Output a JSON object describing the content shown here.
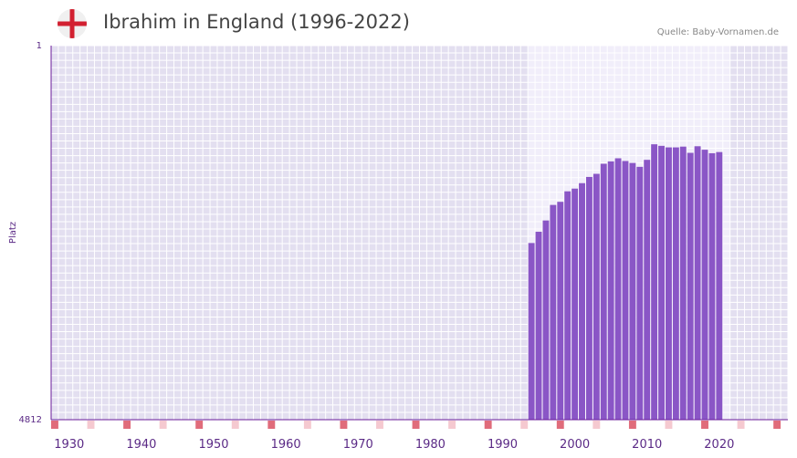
{
  "header": {
    "title": "Ibrahim in England (1996-2022)",
    "source": "Quelle: Baby-Vornamen.de",
    "flag_icon": "england-flag-icon"
  },
  "colors": {
    "bar": "#8a56c6",
    "plot_bg": "#e3dff0",
    "highlight_bg": "#f1eefa",
    "grid": "#ffffff",
    "axis": "#6a1b9a",
    "tick_text": "#5b2a86",
    "marker_major": "#e06c7b",
    "marker_minor": "#f5c9d0"
  },
  "chart_data": {
    "type": "bar",
    "title": "Ibrahim in England (1996-2022)",
    "xlabel": "",
    "ylabel": "Platz",
    "y_top_label": "1",
    "y_bottom_label": "4812",
    "ylim": [
      4812,
      1
    ],
    "xlim": [
      1928,
      2029
    ],
    "highlight_range": [
      1994,
      2021
    ],
    "x_ticks": [
      1930,
      1940,
      1950,
      1960,
      1970,
      1980,
      1990,
      2000,
      2010,
      2020
    ],
    "x_tick_labels": [
      "1930",
      "1940",
      "1950",
      "1960",
      "1970",
      "1980",
      "1990",
      "2000",
      "2010",
      "2020"
    ],
    "series": [
      {
        "name": "Ibrahim",
        "x": [
          1994,
          1995,
          1996,
          1997,
          1998,
          1999,
          2000,
          2001,
          2002,
          2003,
          2004,
          2005,
          2006,
          2007,
          2008,
          2009,
          2010,
          2011,
          2012,
          2013,
          2014,
          2015,
          2016,
          2017,
          2018,
          2019,
          2020
        ],
        "values": [
          2540,
          2395,
          2250,
          2050,
          2010,
          1875,
          1840,
          1770,
          1690,
          1650,
          1520,
          1490,
          1450,
          1485,
          1510,
          1560,
          1470,
          1270,
          1290,
          1310,
          1310,
          1300,
          1380,
          1295,
          1340,
          1385,
          1370
        ]
      }
    ]
  }
}
